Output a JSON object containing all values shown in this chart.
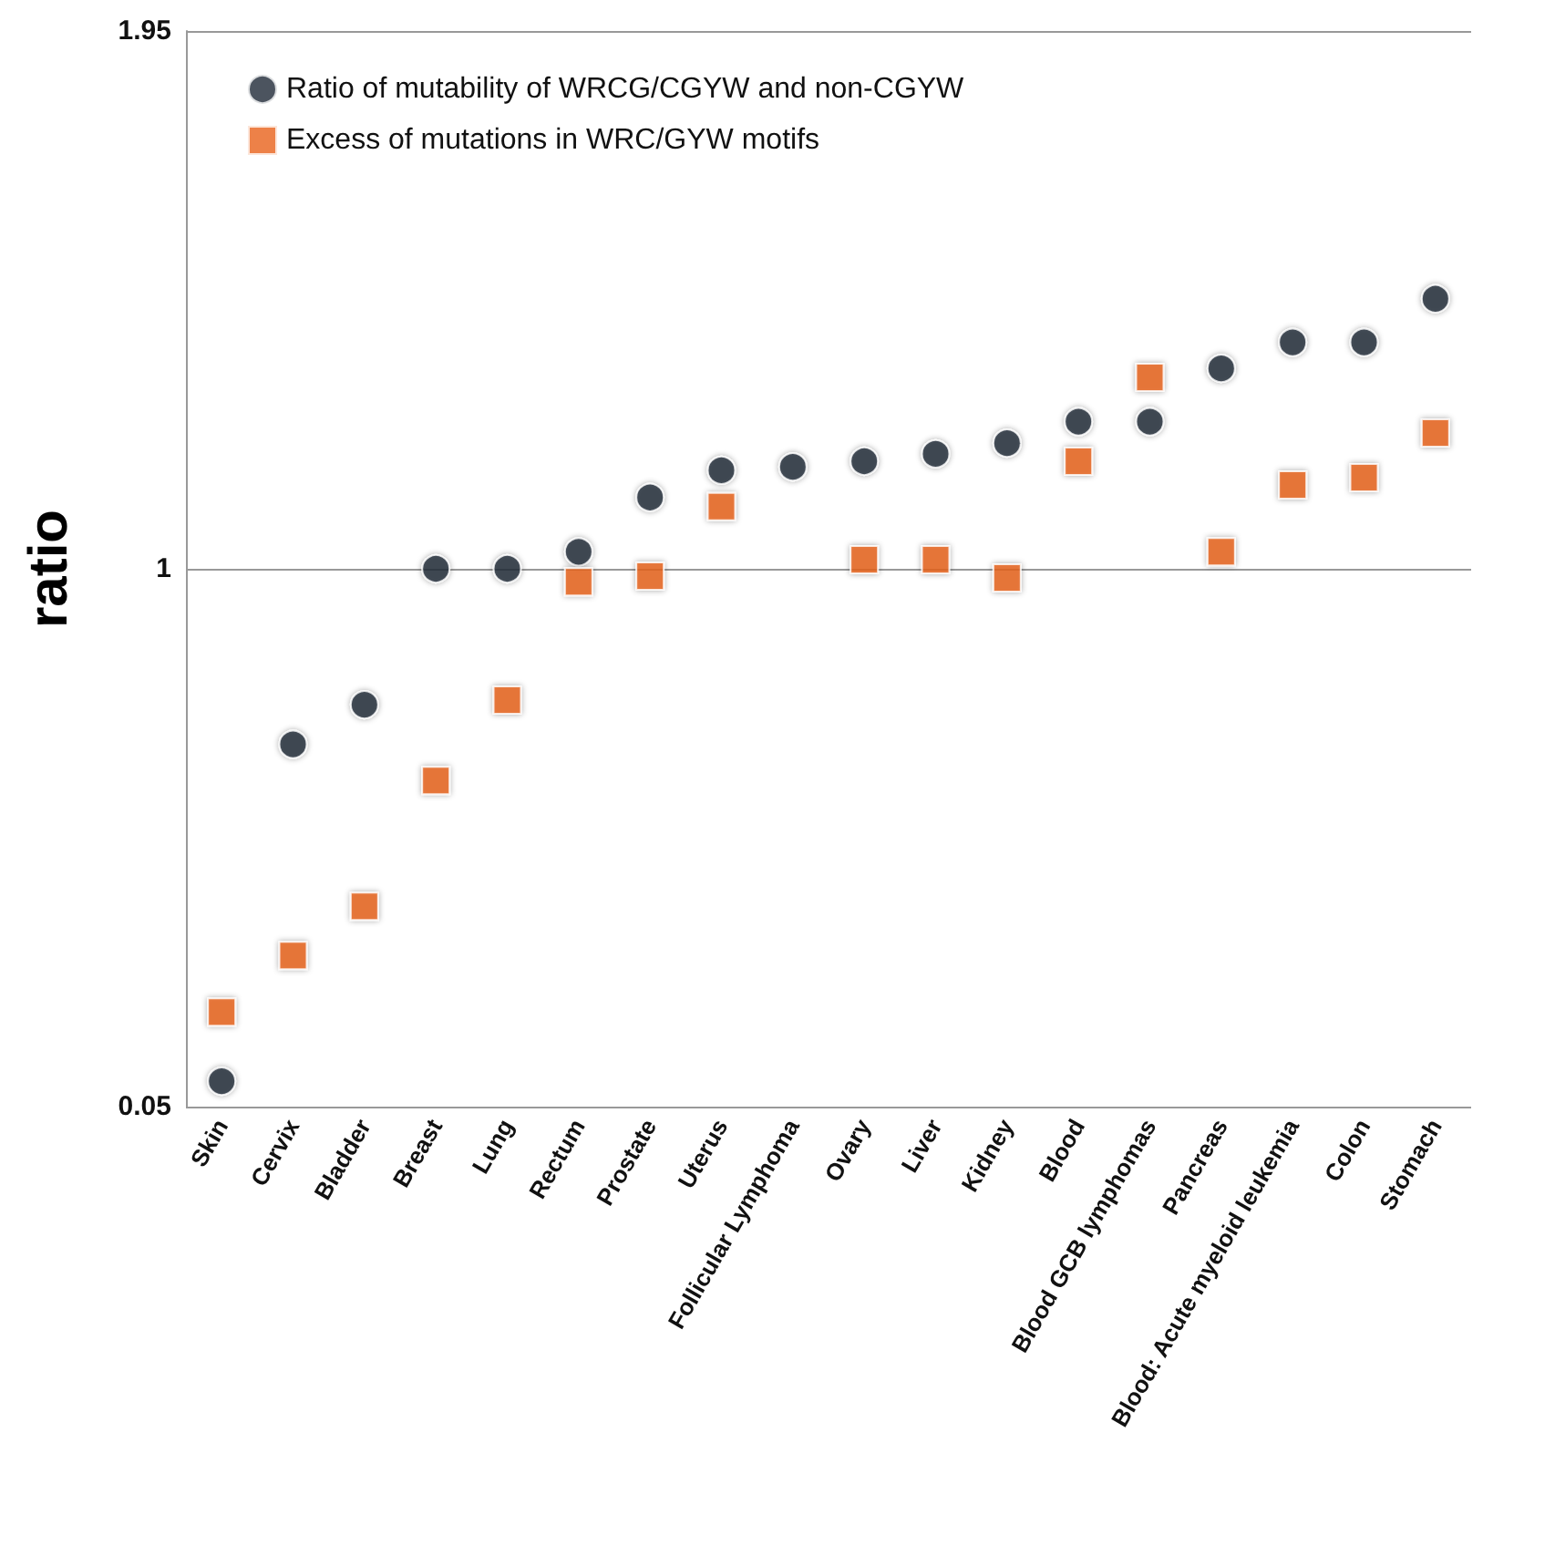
{
  "chart_data": {
    "type": "scatter",
    "ylabel": "ratio",
    "categories": [
      "Skin",
      "Cervix",
      "Bladder",
      "Breast",
      "Lung",
      "Rectum",
      "Prostate",
      "Uterus",
      "Follicular Lymphoma",
      "Ovary",
      "Liver",
      "Kidney",
      "Blood",
      "Blood GCB lymphomas",
      "Pancreas",
      "Blood: Acute myeloid leukemia",
      "Colon",
      "Stomach"
    ],
    "series": [
      {
        "name": "Ratio of mutability of WRCG/CGYW and non-CGYW",
        "color": "#1f2937",
        "marker": "circle",
        "values": [
          0.095,
          0.69,
          0.76,
          1.0,
          1.0,
          1.03,
          1.126,
          1.174,
          1.18,
          1.19,
          1.203,
          1.222,
          1.26,
          1.26,
          1.354,
          1.4,
          1.4,
          1.477
        ]
      },
      {
        "name": "Excess of mutations in WRC/GYW motifs",
        "color": "#e8621a",
        "marker": "square",
        "values": [
          0.217,
          0.317,
          0.404,
          0.626,
          0.768,
          0.977,
          0.987,
          1.11,
          null,
          1.016,
          1.016,
          0.984,
          1.19,
          1.338,
          1.03,
          1.148,
          1.161,
          1.24
        ]
      }
    ],
    "ylim": [
      0.05,
      1.95
    ],
    "yticks": [
      0.05,
      1,
      1.95
    ],
    "grid": "y",
    "legend": "top left"
  }
}
